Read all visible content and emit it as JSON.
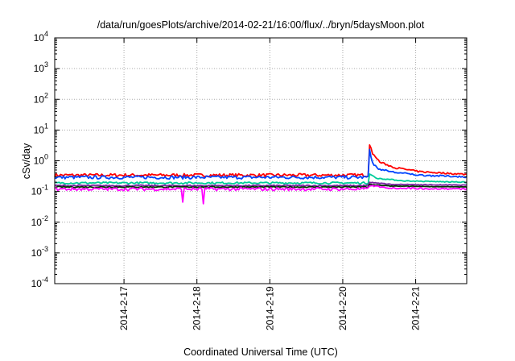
{
  "chart_data": {
    "type": "line",
    "title": "/data/run/goesPlots/archive/2014-02-21/16:00/flux/../bryn/5daysMoon.plot",
    "xlabel": "Coordinated Universal Time (UTC)",
    "ylabel": "cSv/day",
    "yscale": "log",
    "ylim": [
      0.0001,
      10000
    ],
    "y_ticks": [
      {
        "value": 0.0001,
        "base": "10",
        "exp": "-4"
      },
      {
        "value": 0.001,
        "base": "10",
        "exp": "-3"
      },
      {
        "value": 0.01,
        "base": "10",
        "exp": "-2"
      },
      {
        "value": 0.1,
        "base": "10",
        "exp": "-1"
      },
      {
        "value": 1,
        "base": "10",
        "exp": "0"
      },
      {
        "value": 10,
        "base": "10",
        "exp": "1"
      },
      {
        "value": 100,
        "base": "10",
        "exp": "2"
      },
      {
        "value": 1000,
        "base": "10",
        "exp": "3"
      },
      {
        "value": 10000,
        "base": "10",
        "exp": "4"
      }
    ],
    "xlim": [
      16.05,
      21.7
    ],
    "x_ticks": [
      {
        "value": 17,
        "label": "2014-2-17"
      },
      {
        "value": 18,
        "label": "2014-2-18"
      },
      {
        "value": 19,
        "label": "2014-2-19"
      },
      {
        "value": 20,
        "label": "2014-2-20"
      },
      {
        "value": 21,
        "label": "2014-2-21"
      }
    ],
    "grid": true,
    "legend": "none",
    "event_time": 20.36,
    "series": [
      {
        "color": "#ff0000",
        "base": 0.34,
        "noise": 0.12,
        "event": [
          [
            0,
            4.0
          ],
          [
            0.05,
            1.7
          ],
          [
            0.15,
            0.9
          ],
          [
            0.35,
            0.6
          ],
          [
            0.7,
            0.44
          ],
          [
            1.34,
            0.36
          ]
        ],
        "spikes": []
      },
      {
        "color": "#0044ff",
        "base": 0.29,
        "noise": 0.12,
        "event": [
          [
            0,
            3.2
          ],
          [
            0.04,
            0.9
          ],
          [
            0.12,
            0.55
          ],
          [
            0.35,
            0.42
          ],
          [
            0.7,
            0.34
          ],
          [
            1.34,
            0.3
          ]
        ],
        "spikes": []
      },
      {
        "color": "#00cc99",
        "base": 0.19,
        "noise": 0.07,
        "event": [
          [
            0,
            0.38
          ],
          [
            0.1,
            0.27
          ],
          [
            0.5,
            0.22
          ],
          [
            1.34,
            0.2
          ]
        ],
        "spikes": []
      },
      {
        "color": "#7a1fa2",
        "base": 0.155,
        "noise": 0.05,
        "event": [
          [
            0,
            0.2
          ],
          [
            0.3,
            0.17
          ],
          [
            1.34,
            0.16
          ]
        ],
        "spikes": []
      },
      {
        "color": "#003300",
        "base": 0.14,
        "noise": 0.04,
        "event": [
          [
            0,
            0.17
          ],
          [
            0.3,
            0.15
          ],
          [
            1.34,
            0.14
          ]
        ],
        "spikes": []
      },
      {
        "color": "#ff00ff",
        "base": 0.12,
        "noise": 0.12,
        "event": [
          [
            0,
            0.16
          ],
          [
            0.3,
            0.13
          ],
          [
            1.34,
            0.12
          ]
        ],
        "spikes": [
          [
            17.8,
            0.045
          ],
          [
            18.08,
            0.04
          ]
        ]
      }
    ]
  }
}
